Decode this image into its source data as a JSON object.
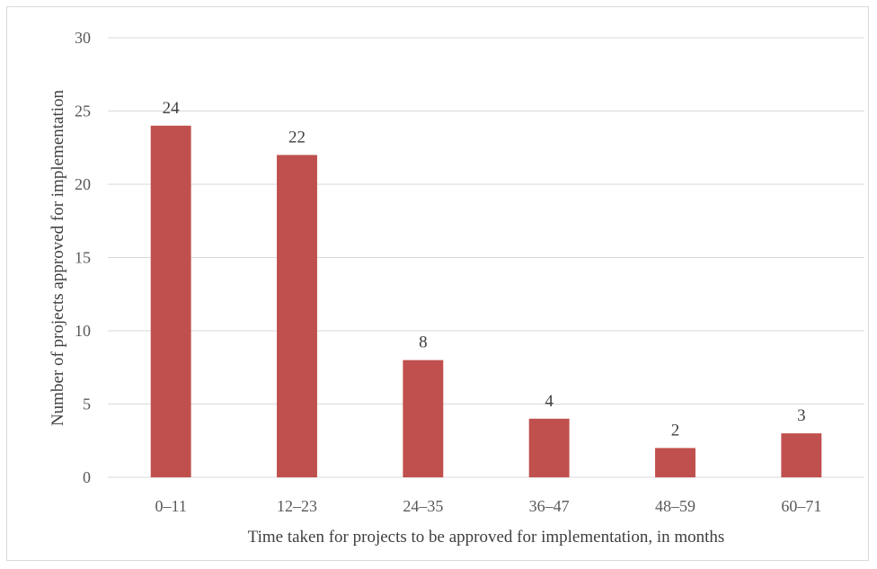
{
  "chart_data": {
    "type": "bar",
    "categories": [
      "0–11",
      "12–23",
      "24–35",
      "36–47",
      "48–59",
      "60–71"
    ],
    "values": [
      24,
      22,
      8,
      4,
      2,
      3
    ],
    "title": "",
    "xlabel": "Time taken for projects to be approved for implementation, in months",
    "ylabel": "Number of projects approved for implementation",
    "ylim": [
      0,
      30
    ],
    "yticks": [
      0,
      5,
      10,
      15,
      20,
      25,
      30
    ],
    "grid": true,
    "legend": "none",
    "bar_color": "#c0504d",
    "grid_color": "#d9d9d9"
  }
}
